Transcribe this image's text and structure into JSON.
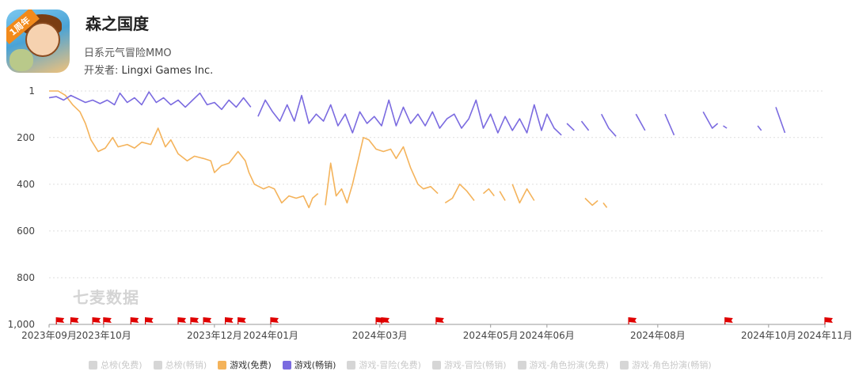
{
  "app": {
    "title": "森之国度",
    "genre": "日系元气冒险MMO",
    "developer_label": "开发者:",
    "developer_name": "Lingxi Games Inc.",
    "icon_badge": "1周年"
  },
  "watermark": "七麦数据",
  "legend": [
    {
      "label": "总榜(免费)",
      "color": "#d6d6d6",
      "active": false
    },
    {
      "label": "总榜(畅销)",
      "color": "#d6d6d6",
      "active": false
    },
    {
      "label": "游戏(免费)",
      "color": "#f4b35b",
      "active": true
    },
    {
      "label": "游戏(畅销)",
      "color": "#7b6be0",
      "active": true
    },
    {
      "label": "游戏-冒险(免费)",
      "color": "#d6d6d6",
      "active": false
    },
    {
      "label": "游戏-冒险(畅销)",
      "color": "#d6d6d6",
      "active": false
    },
    {
      "label": "游戏-角色扮演(免费)",
      "color": "#d6d6d6",
      "active": false
    },
    {
      "label": "游戏-角色扮演(畅销)",
      "color": "#d6d6d6",
      "active": false
    }
  ],
  "chart_data": {
    "type": "line",
    "y_reversed": true,
    "ylim": [
      1,
      1000
    ],
    "y_ticks": [
      {
        "value": 1,
        "label": "1"
      },
      {
        "value": 200,
        "label": "200"
      },
      {
        "value": 400,
        "label": "400"
      },
      {
        "value": 600,
        "label": "600"
      },
      {
        "value": 800,
        "label": "800"
      },
      {
        "value": 1000,
        "label": "1,000"
      }
    ],
    "x_range": [
      "2023-09-01",
      "2024-11-01"
    ],
    "x_ticks": [
      {
        "date": "2023-09-01",
        "label": "2023年09月"
      },
      {
        "date": "2023-10-01",
        "label": "2023年10月"
      },
      {
        "date": "2023-12-01",
        "label": "2023年12月"
      },
      {
        "date": "2024-01-01",
        "label": "2024年01月"
      },
      {
        "date": "2024-03-01",
        "label": "2024年03月"
      },
      {
        "date": "2024-05-01",
        "label": "2024年05月"
      },
      {
        "date": "2024-06-01",
        "label": "2024年06月"
      },
      {
        "date": "2024-08-01",
        "label": "2024年08月"
      },
      {
        "date": "2024-10-01",
        "label": "2024年10月"
      },
      {
        "date": "2024-11-01",
        "label": "2024年11月"
      }
    ],
    "grid": true,
    "legend_position": "bottom",
    "series": [
      {
        "name": "游戏(免费)",
        "color": "#f4b35b",
        "segments": [
          [
            [
              "2023-09-01",
              1
            ],
            [
              "2023-09-06",
              1
            ],
            [
              "2023-09-10",
              20
            ],
            [
              "2023-09-14",
              60
            ],
            [
              "2023-09-18",
              90
            ],
            [
              "2023-09-21",
              140
            ],
            [
              "2023-09-24",
              210
            ],
            [
              "2023-09-28",
              260
            ],
            [
              "2023-10-02",
              245
            ],
            [
              "2023-10-06",
              200
            ],
            [
              "2023-10-09",
              240
            ],
            [
              "2023-10-14",
              230
            ],
            [
              "2023-10-18",
              245
            ],
            [
              "2023-10-22",
              220
            ],
            [
              "2023-10-27",
              230
            ],
            [
              "2023-10-31",
              160
            ],
            [
              "2023-11-04",
              240
            ],
            [
              "2023-11-07",
              210
            ],
            [
              "2023-11-11",
              270
            ],
            [
              "2023-11-16",
              300
            ],
            [
              "2023-11-20",
              280
            ],
            [
              "2023-11-25",
              290
            ],
            [
              "2023-11-29",
              300
            ],
            [
              "2023-12-01",
              350
            ],
            [
              "2023-12-05",
              320
            ],
            [
              "2023-12-09",
              310
            ],
            [
              "2023-12-14",
              260
            ],
            [
              "2023-12-18",
              300
            ],
            [
              "2023-12-20",
              350
            ],
            [
              "2023-12-23",
              400
            ],
            [
              "2023-12-28",
              420
            ],
            [
              "2023-12-31",
              410
            ],
            [
              "2024-01-03",
              420
            ],
            [
              "2024-01-07",
              480
            ],
            [
              "2024-01-11",
              450
            ],
            [
              "2024-01-15",
              460
            ],
            [
              "2024-01-19",
              450
            ],
            [
              "2024-01-22",
              500
            ],
            [
              "2024-01-24",
              460
            ],
            [
              "2024-01-27",
              440
            ]
          ],
          [
            [
              "2024-01-31",
              490
            ],
            [
              "2024-02-03",
              310
            ],
            [
              "2024-02-06",
              450
            ],
            [
              "2024-02-09",
              420
            ],
            [
              "2024-02-12",
              480
            ],
            [
              "2024-02-15",
              400
            ],
            [
              "2024-02-18",
              300
            ],
            [
              "2024-02-21",
              200
            ],
            [
              "2024-02-24",
              210
            ],
            [
              "2024-02-28",
              250
            ],
            [
              "2024-03-03",
              260
            ],
            [
              "2024-03-07",
              250
            ],
            [
              "2024-03-10",
              290
            ],
            [
              "2024-03-14",
              240
            ],
            [
              "2024-03-18",
              330
            ],
            [
              "2024-03-22",
              400
            ],
            [
              "2024-03-25",
              420
            ],
            [
              "2024-03-29",
              410
            ],
            [
              "2024-04-02",
              440
            ]
          ],
          [
            [
              "2024-04-06",
              480
            ],
            [
              "2024-04-10",
              460
            ],
            [
              "2024-04-14",
              400
            ],
            [
              "2024-04-18",
              430
            ],
            [
              "2024-04-22",
              470
            ]
          ],
          [
            [
              "2024-04-27",
              440
            ],
            [
              "2024-04-30",
              420
            ],
            [
              "2024-05-03",
              450
            ]
          ],
          [
            [
              "2024-05-06",
              430
            ],
            [
              "2024-05-09",
              470
            ]
          ],
          [
            [
              "2024-05-13",
              400
            ],
            [
              "2024-05-17",
              480
            ],
            [
              "2024-05-21",
              420
            ],
            [
              "2024-05-25",
              470
            ]
          ],
          [
            [
              "2024-06-22",
              460
            ],
            [
              "2024-06-26",
              490
            ],
            [
              "2024-06-29",
              470
            ]
          ],
          [
            [
              "2024-07-02",
              480
            ],
            [
              "2024-07-04",
              500
            ]
          ]
        ]
      },
      {
        "name": "游戏(畅销)",
        "color": "#7b6be0",
        "segments": [
          [
            [
              "2023-09-01",
              30
            ],
            [
              "2023-09-05",
              25
            ],
            [
              "2023-09-09",
              40
            ],
            [
              "2023-09-13",
              20
            ],
            [
              "2023-09-17",
              35
            ],
            [
              "2023-09-21",
              50
            ],
            [
              "2023-09-25",
              40
            ],
            [
              "2023-09-29",
              55
            ],
            [
              "2023-10-03",
              40
            ],
            [
              "2023-10-07",
              60
            ],
            [
              "2023-10-10",
              10
            ],
            [
              "2023-10-14",
              50
            ],
            [
              "2023-10-18",
              30
            ],
            [
              "2023-10-22",
              60
            ],
            [
              "2023-10-26",
              5
            ],
            [
              "2023-10-30",
              50
            ],
            [
              "2023-11-03",
              30
            ],
            [
              "2023-11-07",
              60
            ],
            [
              "2023-11-11",
              40
            ],
            [
              "2023-11-15",
              70
            ],
            [
              "2023-11-19",
              40
            ],
            [
              "2023-11-23",
              10
            ],
            [
              "2023-11-27",
              60
            ],
            [
              "2023-12-01",
              50
            ],
            [
              "2023-12-05",
              80
            ],
            [
              "2023-12-09",
              40
            ],
            [
              "2023-12-13",
              70
            ],
            [
              "2023-12-17",
              30
            ],
            [
              "2023-12-21",
              70
            ]
          ],
          [
            [
              "2023-12-25",
              110
            ],
            [
              "2023-12-29",
              40
            ],
            [
              "2024-01-02",
              90
            ],
            [
              "2024-01-06",
              130
            ],
            [
              "2024-01-10",
              60
            ],
            [
              "2024-01-14",
              130
            ],
            [
              "2024-01-18",
              20
            ],
            [
              "2024-01-22",
              140
            ],
            [
              "2024-01-26",
              100
            ],
            [
              "2024-01-30",
              130
            ],
            [
              "2024-02-03",
              60
            ],
            [
              "2024-02-07",
              150
            ],
            [
              "2024-02-11",
              100
            ],
            [
              "2024-02-15",
              180
            ],
            [
              "2024-02-19",
              90
            ],
            [
              "2024-02-23",
              140
            ],
            [
              "2024-02-27",
              110
            ],
            [
              "2024-03-02",
              150
            ],
            [
              "2024-03-06",
              40
            ],
            [
              "2024-03-10",
              150
            ],
            [
              "2024-03-14",
              70
            ],
            [
              "2024-03-18",
              140
            ],
            [
              "2024-03-22",
              100
            ],
            [
              "2024-03-26",
              150
            ],
            [
              "2024-03-30",
              90
            ],
            [
              "2024-04-03",
              160
            ],
            [
              "2024-04-07",
              120
            ],
            [
              "2024-04-11",
              100
            ],
            [
              "2024-04-15",
              160
            ],
            [
              "2024-04-19",
              120
            ],
            [
              "2024-04-23",
              40
            ],
            [
              "2024-04-27",
              160
            ],
            [
              "2024-05-01",
              100
            ],
            [
              "2024-05-05",
              180
            ],
            [
              "2024-05-09",
              110
            ],
            [
              "2024-05-13",
              170
            ],
            [
              "2024-05-17",
              120
            ],
            [
              "2024-05-21",
              180
            ],
            [
              "2024-05-25",
              60
            ],
            [
              "2024-05-29",
              170
            ],
            [
              "2024-06-01",
              100
            ],
            [
              "2024-06-05",
              160
            ],
            [
              "2024-06-09",
              190
            ]
          ],
          [
            [
              "2024-06-12",
              140
            ],
            [
              "2024-06-16",
              170
            ]
          ],
          [
            [
              "2024-06-20",
              130
            ],
            [
              "2024-06-24",
              170
            ]
          ],
          [
            [
              "2024-07-01",
              100
            ],
            [
              "2024-07-05",
              160
            ],
            [
              "2024-07-09",
              195
            ]
          ],
          [
            [
              "2024-07-20",
              100
            ],
            [
              "2024-07-25",
              170
            ]
          ],
          [
            [
              "2024-08-05",
              100
            ],
            [
              "2024-08-10",
              190
            ]
          ],
          [
            [
              "2024-08-26",
              90
            ],
            [
              "2024-08-31",
              160
            ],
            [
              "2024-09-03",
              140
            ]
          ],
          [
            [
              "2024-09-06",
              150
            ],
            [
              "2024-09-08",
              160
            ]
          ],
          [
            [
              "2024-09-25",
              150
            ],
            [
              "2024-09-27",
              170
            ]
          ],
          [
            [
              "2024-10-05",
              70
            ],
            [
              "2024-10-10",
              180
            ]
          ]
        ]
      }
    ],
    "markers": [
      "2023-09-05",
      "2023-09-13",
      "2023-09-25",
      "2023-10-01",
      "2023-10-16",
      "2023-10-24",
      "2023-11-11",
      "2023-11-18",
      "2023-11-25",
      "2023-12-07",
      "2023-12-14",
      "2024-01-01",
      "2024-02-28",
      "2024-03-02",
      "2024-04-01",
      "2024-07-16",
      "2024-09-07",
      "2024-11-01"
    ]
  }
}
